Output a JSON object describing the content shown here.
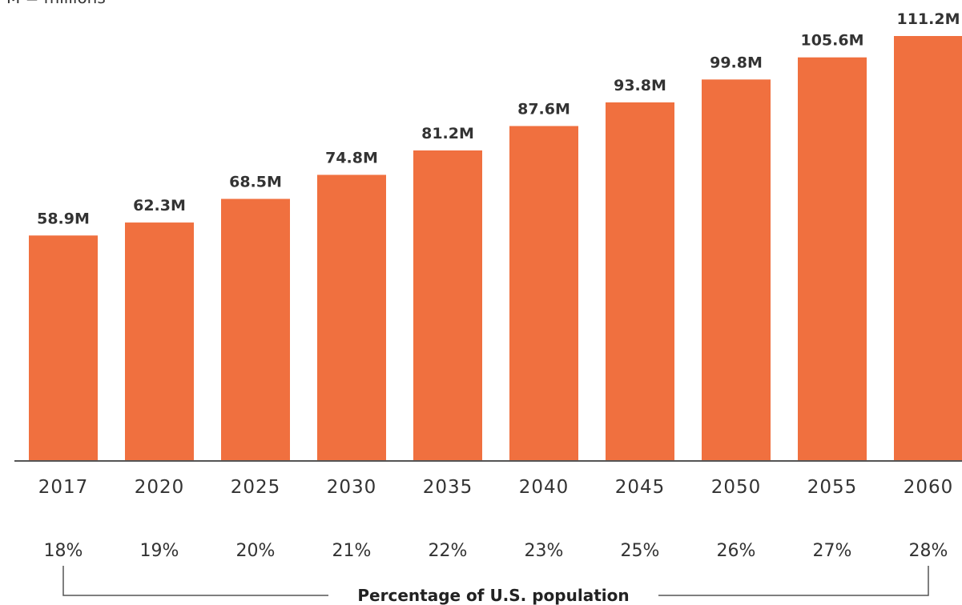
{
  "note": "M = millions",
  "chart_data": {
    "type": "bar",
    "categories": [
      "2017",
      "2020",
      "2025",
      "2030",
      "2035",
      "2040",
      "2045",
      "2050",
      "2055",
      "2060"
    ],
    "values": [
      58.9,
      62.3,
      68.5,
      74.8,
      81.2,
      87.6,
      93.8,
      99.8,
      105.6,
      111.2
    ],
    "value_labels": [
      "58.9M",
      "62.3M",
      "68.5M",
      "74.8M",
      "81.2M",
      "87.6M",
      "93.8M",
      "99.8M",
      "105.6M",
      "111.2M"
    ],
    "percentages": [
      "18%",
      "19%",
      "20%",
      "21%",
      "22%",
      "23%",
      "25%",
      "26%",
      "27%",
      "28%"
    ],
    "percent_caption": "Percentage of U.S. population",
    "ylim": [
      0,
      111.2
    ],
    "grid": false,
    "bar_color": "#f0703f",
    "axis_color": "#555555"
  }
}
